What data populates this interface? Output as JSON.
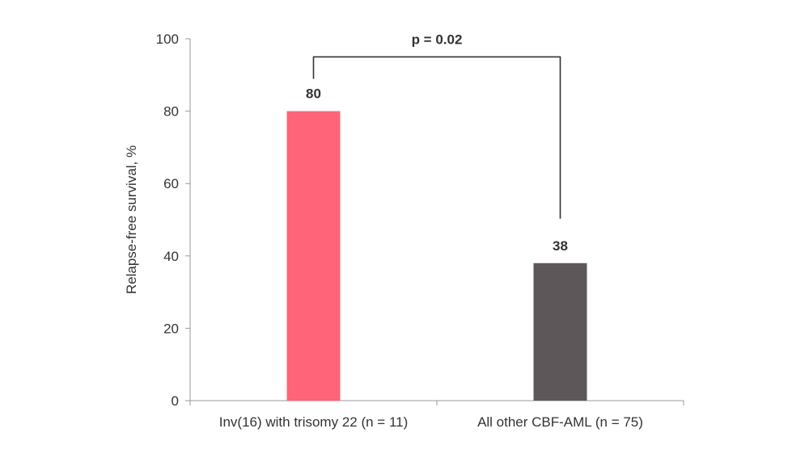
{
  "chart_data": {
    "type": "bar",
    "title": "",
    "xlabel": "",
    "ylabel": "Relapse-free survival, %",
    "ylim": [
      0,
      100
    ],
    "yticks": [
      0,
      20,
      40,
      60,
      80,
      100
    ],
    "grid": false,
    "legend": "none",
    "categories": [
      "Inv(16) with trisomy 22 (n = 11)",
      "All other CBF-AML (n = 75)"
    ],
    "values": [
      80,
      38
    ],
    "data_labels": [
      "80",
      "38"
    ],
    "colors": [
      "#FF6479",
      "#5E5759"
    ],
    "annotation": {
      "text": "p = 0.02",
      "type": "significance-bracket",
      "between": [
        0,
        1
      ]
    }
  }
}
